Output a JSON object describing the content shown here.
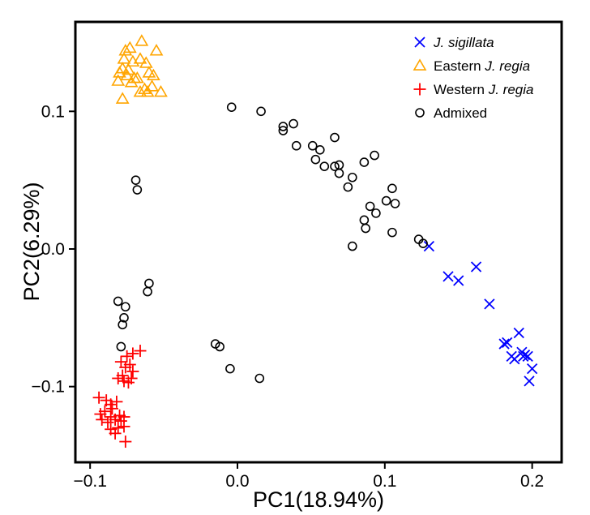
{
  "chart_data": {
    "type": "scatter",
    "xlabel": "PC1(18.94%)",
    "ylabel": "PC2(6.29%)",
    "xlim": [
      -0.11,
      0.22
    ],
    "ylim": [
      -0.155,
      0.165
    ],
    "x_ticks": [
      -0.1,
      0.0,
      0.1,
      0.2
    ],
    "x_tick_labels": [
      "−0.1",
      "0.0",
      "0.1",
      "0.2"
    ],
    "y_ticks": [
      -0.1,
      0.0,
      0.1
    ],
    "y_tick_labels": [
      "−0.1",
      "0.0",
      "0.1"
    ],
    "grid": false,
    "legend_position": "top-right",
    "series": [
      {
        "name": "J. sigillata",
        "legend_parts": [
          {
            "text": "J. sigillata",
            "italic": true
          }
        ],
        "marker": "x",
        "color": "#0000ff",
        "points": [
          [
            0.13,
            0.002
          ],
          [
            0.143,
            -0.02
          ],
          [
            0.15,
            -0.023
          ],
          [
            0.162,
            -0.013
          ],
          [
            0.171,
            -0.04
          ],
          [
            0.181,
            -0.069
          ],
          [
            0.183,
            -0.068
          ],
          [
            0.186,
            -0.078
          ],
          [
            0.188,
            -0.08
          ],
          [
            0.191,
            -0.061
          ],
          [
            0.193,
            -0.075
          ],
          [
            0.195,
            -0.077
          ],
          [
            0.197,
            -0.078
          ],
          [
            0.198,
            -0.096
          ],
          [
            0.2,
            -0.087
          ],
          [
            0.194,
            -0.078
          ]
        ]
      },
      {
        "name": "Eastern J. regia",
        "legend_parts": [
          {
            "text": "Eastern ",
            "italic": false
          },
          {
            "text": "J. regia",
            "italic": true
          }
        ],
        "marker": "triangle",
        "color": "#ffa500",
        "points": [
          [
            -0.076,
            0.144
          ],
          [
            -0.073,
            0.146
          ],
          [
            -0.065,
            0.151
          ],
          [
            -0.055,
            0.144
          ],
          [
            -0.077,
            0.138
          ],
          [
            -0.071,
            0.136
          ],
          [
            -0.066,
            0.138
          ],
          [
            -0.062,
            0.135
          ],
          [
            -0.08,
            0.128
          ],
          [
            -0.075,
            0.126
          ],
          [
            -0.07,
            0.124
          ],
          [
            -0.06,
            0.128
          ],
          [
            -0.057,
            0.126
          ],
          [
            -0.081,
            0.122
          ],
          [
            -0.072,
            0.121
          ],
          [
            -0.068,
            0.124
          ],
          [
            -0.078,
            0.131
          ],
          [
            -0.074,
            0.13
          ],
          [
            -0.066,
            0.114
          ],
          [
            -0.063,
            0.116
          ],
          [
            -0.058,
            0.118
          ],
          [
            -0.052,
            0.114
          ],
          [
            -0.078,
            0.109
          ],
          [
            -0.061,
            0.114
          ]
        ]
      },
      {
        "name": "Western J. regia",
        "legend_parts": [
          {
            "text": "Western ",
            "italic": false
          },
          {
            "text": "J. regia",
            "italic": true
          }
        ],
        "marker": "plus",
        "color": "#ff0000",
        "points": [
          [
            -0.066,
            -0.074
          ],
          [
            -0.071,
            -0.076
          ],
          [
            -0.075,
            -0.078
          ],
          [
            -0.073,
            -0.084
          ],
          [
            -0.076,
            -0.086
          ],
          [
            -0.079,
            -0.082
          ],
          [
            -0.071,
            -0.089
          ],
          [
            -0.078,
            -0.092
          ],
          [
            -0.072,
            -0.094
          ],
          [
            -0.077,
            -0.096
          ],
          [
            -0.081,
            -0.094
          ],
          [
            -0.074,
            -0.097
          ],
          [
            -0.094,
            -0.108
          ],
          [
            -0.089,
            -0.11
          ],
          [
            -0.086,
            -0.113
          ],
          [
            -0.082,
            -0.111
          ],
          [
            -0.09,
            -0.118
          ],
          [
            -0.093,
            -0.12
          ],
          [
            -0.086,
            -0.122
          ],
          [
            -0.08,
            -0.121
          ],
          [
            -0.077,
            -0.122
          ],
          [
            -0.092,
            -0.124
          ],
          [
            -0.088,
            -0.126
          ],
          [
            -0.083,
            -0.124
          ],
          [
            -0.086,
            -0.131
          ],
          [
            -0.081,
            -0.13
          ],
          [
            -0.077,
            -0.129
          ],
          [
            -0.083,
            -0.134
          ],
          [
            -0.076,
            -0.14
          ],
          [
            -0.085,
            -0.116
          ],
          [
            -0.079,
            -0.125
          ]
        ]
      },
      {
        "name": "Admixed",
        "legend_parts": [
          {
            "text": "Admixed",
            "italic": false
          }
        ],
        "marker": "circle",
        "color": "#000000",
        "points": [
          [
            -0.004,
            0.103
          ],
          [
            0.016,
            0.1
          ],
          [
            0.031,
            0.089
          ],
          [
            0.031,
            0.086
          ],
          [
            0.038,
            0.091
          ],
          [
            0.04,
            0.075
          ],
          [
            0.051,
            0.075
          ],
          [
            0.056,
            0.072
          ],
          [
            0.053,
            0.065
          ],
          [
            0.059,
            0.06
          ],
          [
            0.066,
            0.081
          ],
          [
            0.066,
            0.06
          ],
          [
            0.069,
            0.061
          ],
          [
            0.069,
            0.055
          ],
          [
            0.075,
            0.045
          ],
          [
            0.078,
            0.052
          ],
          [
            0.086,
            0.063
          ],
          [
            0.093,
            0.068
          ],
          [
            0.105,
            0.044
          ],
          [
            0.101,
            0.035
          ],
          [
            0.107,
            0.033
          ],
          [
            0.09,
            0.031
          ],
          [
            0.094,
            0.026
          ],
          [
            0.086,
            0.021
          ],
          [
            0.087,
            0.015
          ],
          [
            0.105,
            0.012
          ],
          [
            0.078,
            0.002
          ],
          [
            0.123,
            0.007
          ],
          [
            0.126,
            0.004
          ],
          [
            -0.069,
            0.05
          ],
          [
            -0.068,
            0.043
          ],
          [
            -0.06,
            -0.025
          ],
          [
            -0.061,
            -0.031
          ],
          [
            -0.081,
            -0.038
          ],
          [
            -0.076,
            -0.042
          ],
          [
            -0.077,
            -0.05
          ],
          [
            -0.078,
            -0.055
          ],
          [
            -0.079,
            -0.071
          ],
          [
            -0.015,
            -0.069
          ],
          [
            -0.012,
            -0.071
          ],
          [
            -0.005,
            -0.087
          ],
          [
            0.015,
            -0.094
          ]
        ]
      }
    ]
  }
}
